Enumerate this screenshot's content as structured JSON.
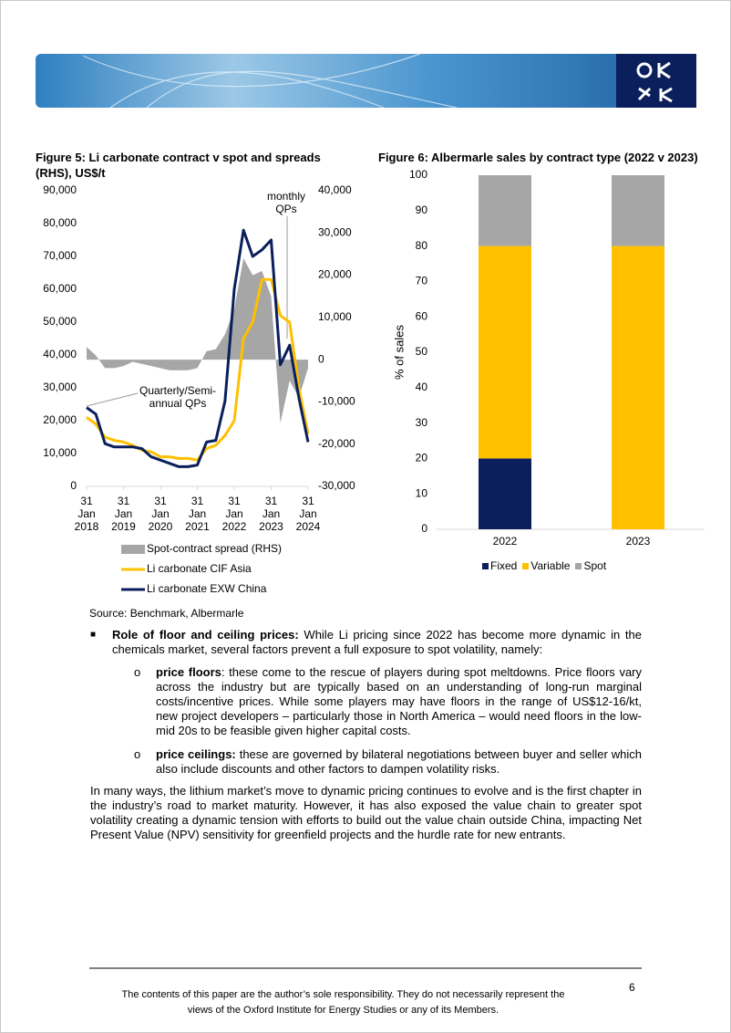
{
  "chart_data": [
    {
      "type": "line",
      "title": "Figure 5: Li carbonate contract v spot and spreads (RHS), US$/t",
      "categories": [
        "31 Jan 2018",
        null,
        null,
        null,
        "31 Jan 2019",
        null,
        null,
        null,
        "31 Jan 2020",
        null,
        null,
        null,
        "31 Jan 2021",
        null,
        null,
        null,
        "31 Jan 2022",
        null,
        null,
        null,
        "31 Jan 2023",
        null,
        null,
        null,
        "31 Jan 2024"
      ],
      "series": [
        {
          "name": "Spot-contract spread (RHS)",
          "type": "area",
          "axis": "y2",
          "color": "#a6a6a6",
          "values": [
            3000,
            1000,
            -2000,
            -2000,
            -1500,
            -500,
            -1000,
            -1500,
            -2000,
            -2500,
            -2500,
            -2500,
            -2000,
            2000,
            2500,
            6000,
            12000,
            24000,
            20000,
            21000,
            15000,
            -15000,
            -5000,
            -9000,
            -2000
          ]
        },
        {
          "name": "Li carbonate CIF Asia",
          "type": "line",
          "color": "#ffc000",
          "values": [
            21000,
            19000,
            15000,
            14000,
            13500,
            12500,
            11000,
            10500,
            9000,
            9000,
            8500,
            8500,
            8000,
            11500,
            12500,
            15500,
            20000,
            45000,
            50000,
            63000,
            63000,
            52000,
            50000,
            30000,
            16000
          ]
        },
        {
          "name": "Li carbonate EXW China",
          "type": "line",
          "color": "#0a1f5c",
          "values": [
            24000,
            22000,
            13000,
            12000,
            12000,
            12000,
            11500,
            9000,
            8000,
            7000,
            6000,
            6000,
            6500,
            13500,
            14000,
            26000,
            60000,
            78000,
            70000,
            72000,
            75000,
            37000,
            43000,
            27000,
            13500
          ]
        }
      ],
      "ylim": [
        0,
        90000
      ],
      "yticks": [
        0,
        {
          "value": 10000,
          "label": "10,000"
        },
        {
          "value": 20000,
          "label": "20,000"
        },
        {
          "value": 30000,
          "label": "30,000"
        },
        {
          "value": 40000,
          "label": "40,000"
        },
        {
          "value": 50000,
          "label": "50,000"
        },
        {
          "value": 60000,
          "label": "60,000"
        },
        {
          "value": 70000,
          "label": "70,000"
        },
        {
          "value": 80000,
          "label": "80,000"
        },
        {
          "value": 90000,
          "label": "90,000"
        }
      ],
      "y2lim": [
        -30000,
        40000
      ],
      "y2ticks": [
        {
          "value": -30000,
          "label": "-30,000"
        },
        {
          "value": -20000,
          "label": "-20,000"
        },
        {
          "value": -10000,
          "label": "-10,000"
        },
        0,
        {
          "value": 10000,
          "label": "10,000"
        },
        {
          "value": 20000,
          "label": "20,000"
        },
        {
          "value": 30000,
          "label": "30,000"
        },
        {
          "value": 40000,
          "label": "40,000"
        }
      ],
      "annotations": [
        "monthly QPs",
        "Quarterly/Semi-annual QPs"
      ],
      "source": "Source: Benchmark, Albermarle"
    },
    {
      "type": "stacked_bar",
      "title": "Figure 6: Albermarle sales by contract type (2022 v 2023)",
      "ylabel": "% of sales",
      "categories": [
        "2022",
        "2023"
      ],
      "series": [
        {
          "name": "Fixed",
          "color": "#0a1f5c",
          "values": [
            20,
            0
          ]
        },
        {
          "name": "Variable",
          "color": "#ffc000",
          "values": [
            60,
            80
          ]
        },
        {
          "name": "Spot",
          "color": "#a6a6a6",
          "values": [
            20,
            20
          ]
        }
      ],
      "ylim": [
        0,
        100
      ],
      "yticks": [
        0,
        10,
        20,
        30,
        40,
        50,
        60,
        70,
        80,
        90,
        100
      ]
    }
  ],
  "bullets": [
    {
      "title": "Role of floor and ceiling prices:",
      "text": "While Li pricing since 2022 has become more dynamic in the chemicals market, several factors prevent a full exposure to spot volatility, namely:"
    }
  ],
  "sub_bullets": [
    {
      "title": "price floors",
      "text": ": these come to the rescue of players during spot meltdowns. Price floors vary across the industry but are typically based on an understanding of long-run marginal costs/incentive prices. While some players may have floors in the range of US$12-16/kt, new project developers – particularly those in North America – would need floors in the low-mid 20s to be feasible given higher capital costs."
    },
    {
      "title": "price ceilings:",
      "text": "these are governed by bilateral negotiations between buyer and seller which also include discounts and other factors to dampen volatility risks."
    }
  ],
  "paragraph": "In many ways, the lithium market’s move to dynamic pricing continues to evolve and is the first chapter in the industry’s road to market maturity. However, it has also exposed the value chain to greater spot volatility creating a dynamic tension with efforts to build out the value chain outside China, impacting Net Present Value (NPV) sensitivity for greenfield projects and the hurdle rate for new entrants.",
  "footer": {
    "text": "The contents of this paper are the author’s sole responsibility. They do not necessarily represent the views of the Oxford Institute for Energy Studies or any of its Members.",
    "page": "6"
  }
}
